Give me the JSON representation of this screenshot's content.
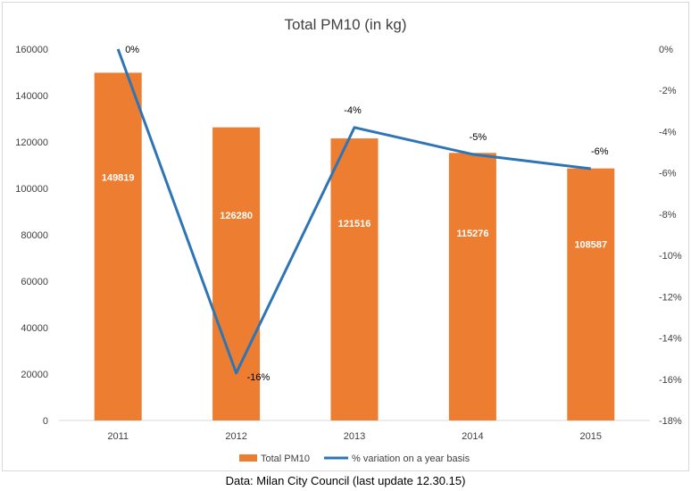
{
  "chart_data": {
    "type": "bar",
    "title": "Total PM10 (in kg)",
    "categories": [
      "2011",
      "2012",
      "2013",
      "2014",
      "2015"
    ],
    "series": [
      {
        "name": "Total PM10",
        "type": "bar",
        "axis": "left",
        "values": [
          149819,
          126280,
          121516,
          115276,
          108587
        ],
        "color": "#ed7d31"
      },
      {
        "name": "% variation on a year basis",
        "type": "line",
        "axis": "right",
        "values": [
          0,
          -15.7,
          -3.8,
          -5.1,
          -5.8
        ],
        "labels": [
          "0%",
          "-16%",
          "-4%",
          "-5%",
          "-6%"
        ],
        "color": "#2e75b6"
      }
    ],
    "y_left": {
      "min": 0,
      "max": 160000,
      "ticks": [
        "0",
        "20000",
        "40000",
        "60000",
        "80000",
        "100000",
        "120000",
        "140000",
        "160000"
      ]
    },
    "y_right": {
      "min": -18,
      "max": 0,
      "ticks": [
        "-18%",
        "-16%",
        "-14%",
        "-12%",
        "-10%",
        "-8%",
        "-6%",
        "-4%",
        "-2%",
        "0%"
      ]
    },
    "grid": false,
    "legend_position": "bottom"
  },
  "caption": "Data: Milan City Council (last update 12.30.15)"
}
